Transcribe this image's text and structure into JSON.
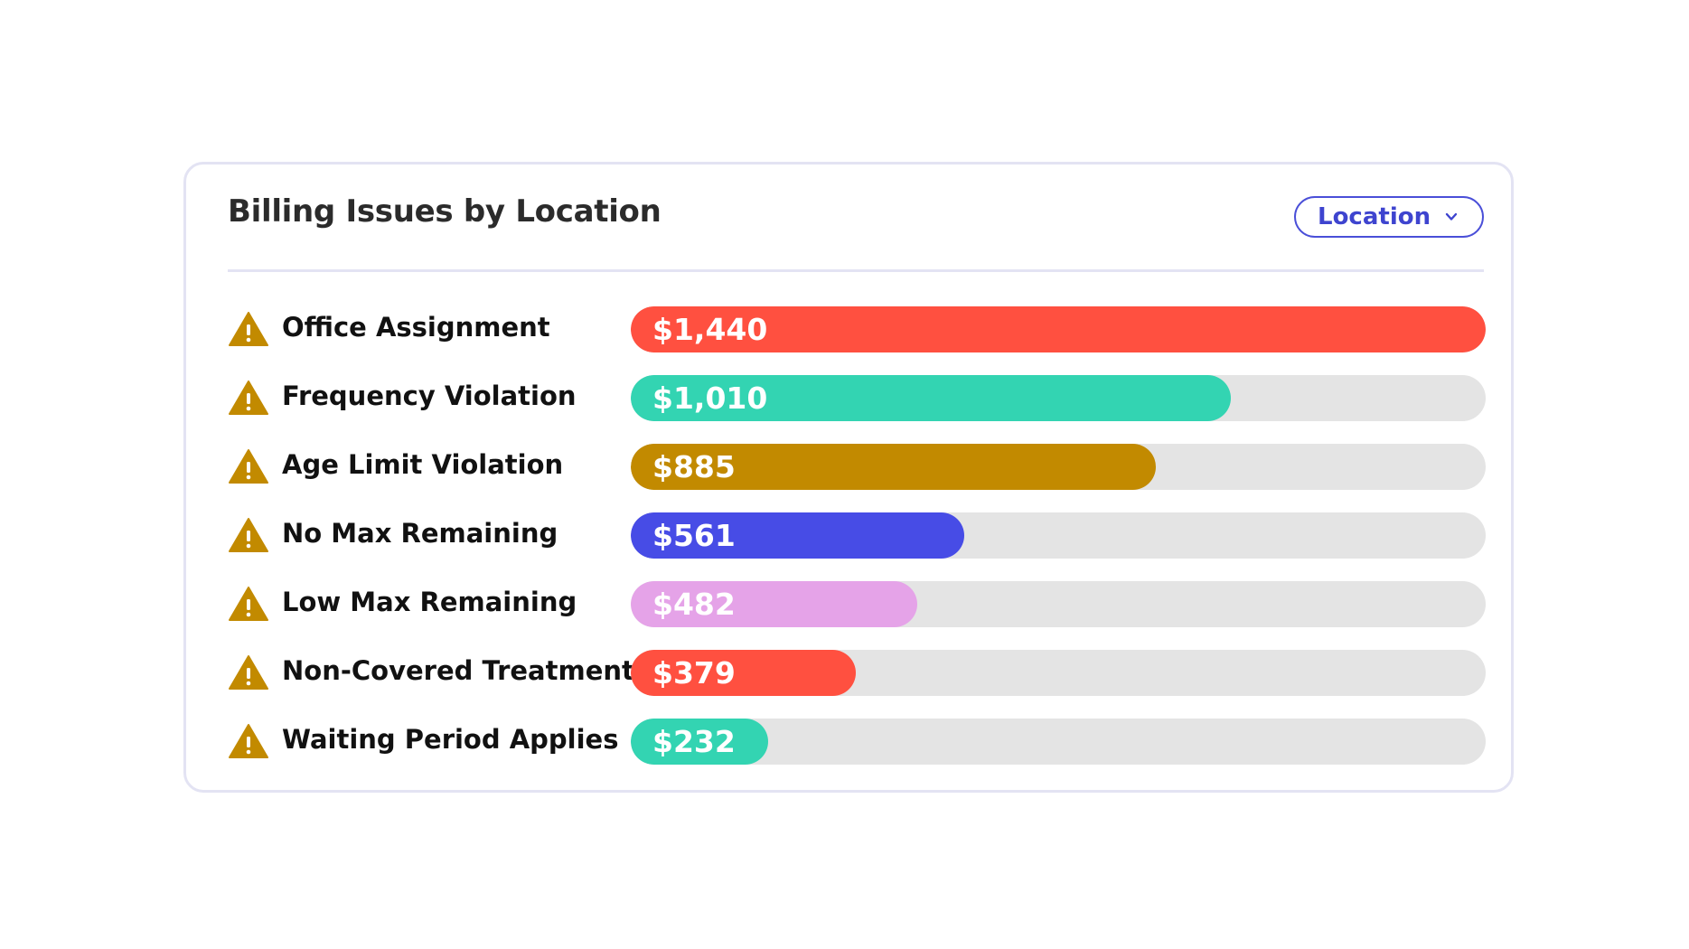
{
  "card": {
    "title": "Billing Issues by Location",
    "dropdown": {
      "selected": "Location",
      "icon": "chevron-down-icon"
    }
  },
  "chart_data": {
    "type": "bar",
    "orientation": "horizontal",
    "max_value": 1440,
    "categories": [
      "Office Assignment",
      "Frequency Violation",
      "Age Limit Violation",
      "No Max Remaining",
      "Low Max Remaining",
      "Non-Covered Treatment",
      "Waiting Period Applies"
    ],
    "values": [
      1440,
      1010,
      885,
      561,
      482,
      379,
      232
    ],
    "value_labels": [
      "$1,440",
      "$1,010",
      "$885",
      "$561",
      "$482",
      "$379",
      "$232"
    ],
    "colors": [
      "#ff5040",
      "#33d4b2",
      "#c28a00",
      "#474ce6",
      "#e5a3e8",
      "#ff5040",
      "#33d4b2"
    ],
    "row_icon": "warning-icon",
    "icon_color": "#c28a00",
    "track_color": "#e4e4e4"
  }
}
